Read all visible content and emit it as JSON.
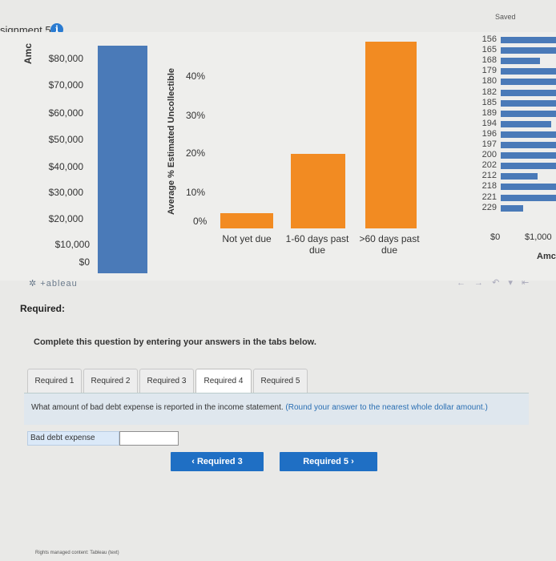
{
  "header": {
    "title": "signment 5",
    "saved": "Saved"
  },
  "tableau": {
    "amount_axis_title": "Amc",
    "amount_ticks": [
      "$80,000",
      "$70,000",
      "$60,000",
      "$50,000",
      "$40,000",
      "$30,000",
      "$20,000",
      "$10,000",
      "$0"
    ],
    "pct_axis_title": "Average % Estimated Uncollectible",
    "pct_ticks": [
      "40%",
      "30%",
      "20%",
      "10%",
      "0%"
    ],
    "categories": [
      "Not yet due",
      "1-60 days past due",
      ">60 days past due"
    ],
    "mini_numbers": [
      "156",
      "165",
      "168",
      "179",
      "180",
      "182",
      "185",
      "189",
      "194",
      "196",
      "197",
      "200",
      "202",
      "212",
      "218",
      "221",
      "229"
    ],
    "mini_axis_ticks": [
      "$0",
      "$1,000"
    ],
    "mini_axis_title": "Amc",
    "logo": "+ableau",
    "toolbar": "← → ↶ ▾ ⇤"
  },
  "chart_data": [
    {
      "type": "bar",
      "title": "",
      "ylabel": "Amc",
      "yticks": [
        "$80,000",
        "$70,000",
        "$60,000",
        "$50,000",
        "$40,000",
        "$30,000",
        "$20,000",
        "$10,000",
        "$0"
      ],
      "values": [
        83000
      ]
    },
    {
      "type": "bar",
      "ylabel": "Average % Estimated Uncollectible",
      "categories": [
        "Not yet due",
        "1-60 days past due",
        ">60 days past due"
      ],
      "values": [
        0.04,
        0.195,
        0.49
      ],
      "ylim": [
        0,
        0.5
      ]
    },
    {
      "type": "bar",
      "orientation": "horizontal",
      "categories": [
        "156",
        "165",
        "168",
        "179",
        "180",
        "182",
        "185",
        "189",
        "194",
        "196",
        "197",
        "200",
        "202",
        "212",
        "218",
        "221",
        "229"
      ],
      "values": [
        1000,
        1000,
        700,
        1000,
        1000,
        1000,
        1000,
        1000,
        900,
        1000,
        1000,
        1000,
        1000,
        650,
        1000,
        1000,
        400
      ],
      "xticks": [
        "$0",
        "$1,000"
      ],
      "xlabel": "Amc"
    }
  ],
  "question": {
    "required_title": "Required:",
    "instructions": "Complete this question by entering your answers in the tabs below.",
    "tabs": [
      "Required 1",
      "Required 2",
      "Required 3",
      "Required 4",
      "Required 5"
    ],
    "active_tab": "Required 4",
    "text": "What amount of bad debt expense is reported in the income statement.",
    "note": "(Round your answer to the nearest whole dollar amount.)",
    "field_label": "Bad debt expense",
    "field_value": "",
    "prev_button": "Required 3",
    "next_button": "Required 5"
  },
  "footer": "Rights managed content: Tableau (text)",
  "colors": {
    "blue_bar": "#4a7ab8",
    "orange_bar": "#f28b22",
    "button": "#1f6fc4"
  }
}
